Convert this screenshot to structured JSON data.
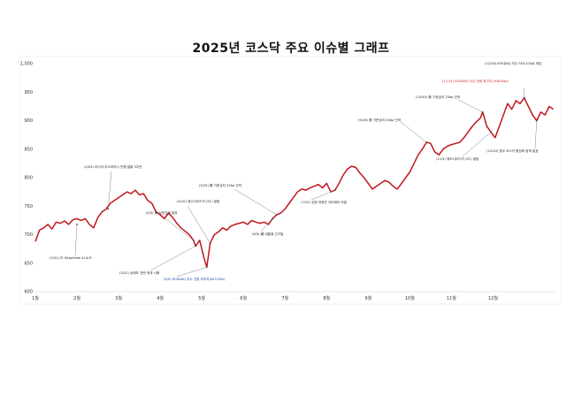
{
  "chart_data": {
    "type": "line",
    "title": "2025년 코스닥 주요 이슈별 그래프",
    "xlabel": "",
    "ylabel": "",
    "ylim": [
      600,
      1000
    ],
    "yticks": [
      "1,000",
      "950",
      "900",
      "850",
      "800",
      "750",
      "700",
      "650",
      "600"
    ],
    "categories": [
      "1월",
      "2월",
      "3월",
      "4월",
      "5월",
      "6월",
      "7월",
      "8월",
      "9월",
      "10월",
      "11월",
      "12월"
    ],
    "grid": false,
    "line_color": "#c0161d",
    "series": [
      {
        "name": "",
        "values": [
          [
            0,
            688
          ],
          [
            0.1,
            708
          ],
          [
            0.2,
            712
          ],
          [
            0.3,
            718
          ],
          [
            0.4,
            710
          ],
          [
            0.5,
            722
          ],
          [
            0.6,
            720
          ],
          [
            0.7,
            724
          ],
          [
            0.8,
            718
          ],
          [
            0.9,
            726
          ],
          [
            1.0,
            728
          ],
          [
            1.1,
            725
          ],
          [
            1.2,
            728
          ],
          [
            1.3,
            718
          ],
          [
            1.4,
            712
          ],
          [
            1.5,
            730
          ],
          [
            1.6,
            740
          ],
          [
            1.7,
            745
          ],
          [
            1.8,
            755
          ],
          [
            1.9,
            760
          ],
          [
            2.0,
            765
          ],
          [
            2.1,
            770
          ],
          [
            2.2,
            775
          ],
          [
            2.3,
            772
          ],
          [
            2.4,
            778
          ],
          [
            2.5,
            770
          ],
          [
            2.6,
            772
          ],
          [
            2.7,
            760
          ],
          [
            2.8,
            755
          ],
          [
            2.9,
            740
          ],
          [
            3.0,
            735
          ],
          [
            3.1,
            728
          ],
          [
            3.2,
            738
          ],
          [
            3.3,
            730
          ],
          [
            3.4,
            720
          ],
          [
            3.5,
            712
          ],
          [
            3.6,
            706
          ],
          [
            3.7,
            700
          ],
          [
            3.8,
            690
          ],
          [
            3.85,
            680
          ],
          [
            3.95,
            690
          ],
          [
            4.05,
            660
          ],
          [
            4.12,
            643
          ],
          [
            4.2,
            685
          ],
          [
            4.3,
            700
          ],
          [
            4.4,
            705
          ],
          [
            4.5,
            712
          ],
          [
            4.6,
            708
          ],
          [
            4.7,
            715
          ],
          [
            4.8,
            718
          ],
          [
            4.9,
            720
          ],
          [
            5.0,
            722
          ],
          [
            5.1,
            718
          ],
          [
            5.2,
            725
          ],
          [
            5.3,
            722
          ],
          [
            5.4,
            720
          ],
          [
            5.5,
            722
          ],
          [
            5.6,
            718
          ],
          [
            5.7,
            728
          ],
          [
            5.8,
            735
          ],
          [
            5.9,
            738
          ],
          [
            6.0,
            745
          ],
          [
            6.1,
            755
          ],
          [
            6.2,
            765
          ],
          [
            6.3,
            775
          ],
          [
            6.4,
            780
          ],
          [
            6.5,
            778
          ],
          [
            6.6,
            782
          ],
          [
            6.7,
            785
          ],
          [
            6.8,
            788
          ],
          [
            6.9,
            782
          ],
          [
            7.0,
            790
          ],
          [
            7.1,
            775
          ],
          [
            7.2,
            778
          ],
          [
            7.3,
            790
          ],
          [
            7.4,
            805
          ],
          [
            7.5,
            815
          ],
          [
            7.6,
            820
          ],
          [
            7.7,
            818
          ],
          [
            7.8,
            808
          ],
          [
            7.9,
            800
          ],
          [
            8.0,
            790
          ],
          [
            8.1,
            780
          ],
          [
            8.2,
            785
          ],
          [
            8.3,
            790
          ],
          [
            8.4,
            795
          ],
          [
            8.5,
            792
          ],
          [
            8.6,
            785
          ],
          [
            8.7,
            780
          ],
          [
            8.8,
            790
          ],
          [
            8.9,
            800
          ],
          [
            9.0,
            810
          ],
          [
            9.1,
            825
          ],
          [
            9.2,
            840
          ],
          [
            9.3,
            850
          ],
          [
            9.4,
            862
          ],
          [
            9.5,
            860
          ],
          [
            9.6,
            845
          ],
          [
            9.7,
            840
          ],
          [
            9.8,
            850
          ],
          [
            9.9,
            855
          ],
          [
            10.0,
            858
          ],
          [
            10.1,
            860
          ],
          [
            10.2,
            862
          ],
          [
            10.3,
            870
          ],
          [
            10.4,
            880
          ],
          [
            10.5,
            890
          ],
          [
            10.6,
            898
          ],
          [
            10.7,
            905
          ],
          [
            10.75,
            915
          ],
          [
            10.85,
            890
          ],
          [
            10.95,
            880
          ],
          [
            11.05,
            870
          ],
          [
            11.15,
            890
          ],
          [
            11.25,
            910
          ],
          [
            11.35,
            930
          ],
          [
            11.45,
            920
          ],
          [
            11.55,
            935
          ],
          [
            11.65,
            930
          ],
          [
            11.75,
            940
          ],
          [
            11.85,
            925
          ],
          [
            11.95,
            910
          ],
          [
            12.05,
            900
          ],
          [
            12.15,
            915
          ],
          [
            12.25,
            910
          ],
          [
            12.35,
            925
          ],
          [
            12.45,
            920
          ]
        ]
      }
    ],
    "annotations": [
      {
        "text": "(12/30) KOSDAQ 지수 925.47p로 마감",
        "color": "default"
      },
      {
        "text": "(11/11) KOSDAQ 지수 연중 최고치 (938.83p)",
        "color": "red"
      },
      {
        "text": "(10/30) 美 기준금리 25bp 인하",
        "color": "default"
      },
      {
        "text": "(9/18) 美 기준금리 25bp 인하",
        "color": "default"
      },
      {
        "text": "(11/5) 매도사이드카 (SC) 발동",
        "color": "default"
      },
      {
        "text": "(12/19) 정부 코스닥 활성화 정책 발표",
        "color": "default"
      },
      {
        "text": "(2/24) 러시아-우크라이나 전쟁 발발 3주년",
        "color": "default"
      },
      {
        "text": "(5/29) 韓 기준금리 25bp 인하",
        "color": "default"
      },
      {
        "text": "(4/10) 매수사이드카 (SC) 발동",
        "color": "default"
      },
      {
        "text": "(4/3) 美 상호관세 발표",
        "color": "default"
      },
      {
        "text": "(7/15) 상법 개정안 국무회의 의결",
        "color": "default"
      },
      {
        "text": "(6/3) 韓 대통령 선거일",
        "color": "default"
      },
      {
        "text": "(1/31) 中 DeepSeek AI 쇼크",
        "color": "default"
      },
      {
        "text": "(3/31) 공매도 전면 재개 시행",
        "color": "default"
      },
      {
        "text": "(4/9) KOSDAQ 지수 연중 최저치(643.39p)",
        "color": "blue"
      }
    ]
  }
}
